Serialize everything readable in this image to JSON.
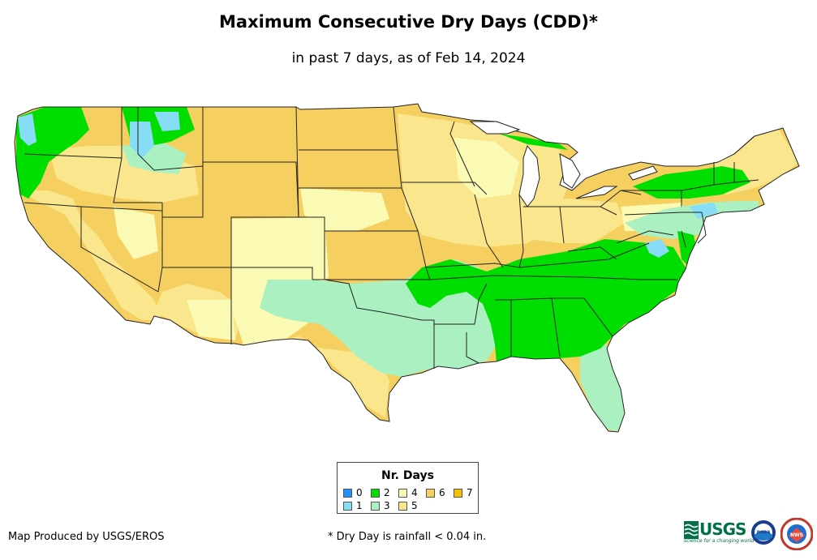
{
  "title": "Maximum Consecutive Dry Days (CDD)*",
  "subtitle": "in past 7 days, as of Feb 14, 2024",
  "legend": {
    "title": "Nr. Days",
    "items": [
      {
        "label": "0",
        "color": "#1e90ff"
      },
      {
        "label": "1",
        "color": "#87ddf5"
      },
      {
        "label": "2",
        "color": "#00dd00"
      },
      {
        "label": "3",
        "color": "#aaf0c0"
      },
      {
        "label": "4",
        "color": "#fafab4"
      },
      {
        "label": "5",
        "color": "#fae68c"
      },
      {
        "label": "6",
        "color": "#f5d060"
      },
      {
        "label": "7",
        "color": "#f5c000"
      }
    ]
  },
  "footer": {
    "credit": "Map Produced by USGS/EROS",
    "note": "* Dry Day is rainfall < 0.04 in."
  },
  "logos": {
    "usgs": "USGS",
    "usgs_tagline": "science for a changing world",
    "noaa": "noaa",
    "nws": "NWS"
  },
  "map": {
    "region": "Contiguous United States",
    "colors": {
      "ocean": "#ffffff",
      "state_border": "#222222",
      "day0": "#1e90ff",
      "day1": "#87ddf5",
      "day2": "#00dd00",
      "day3": "#aaf0c0",
      "day4": "#fafab4",
      "day5": "#fae68c",
      "day6": "#f5d060",
      "day7": "#f5c000"
    }
  }
}
